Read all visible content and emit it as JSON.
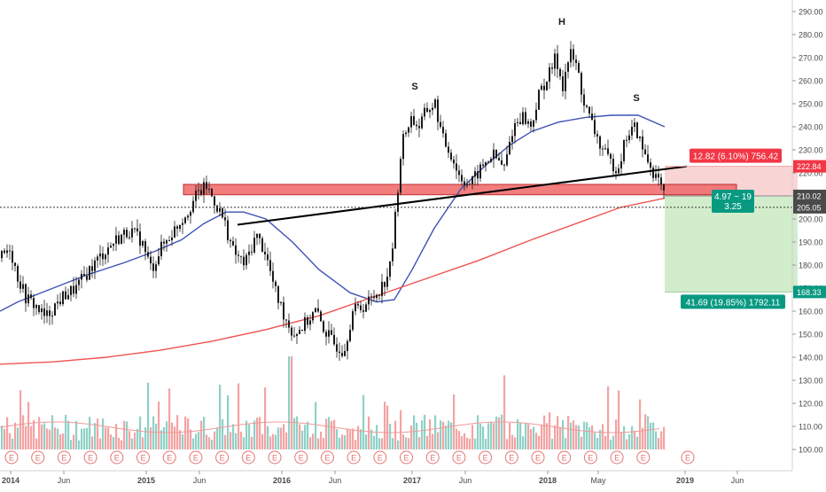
{
  "chart_data": {
    "type": "candlestick",
    "y_axis": {
      "ticks": [
        "290.00",
        "280.00",
        "270.00",
        "260.00",
        "250.00",
        "240.00",
        "230.00",
        "220.00",
        "210.00",
        "200.00",
        "190.00",
        "180.00",
        "170.00",
        "160.00",
        "150.00",
        "140.00",
        "130.00",
        "120.00",
        "110.00",
        "100.00"
      ],
      "range": [
        95,
        292
      ],
      "position": "right",
      "price_labels": [
        {
          "value": 222.84,
          "text": "222.84",
          "color": "#f23645"
        },
        {
          "value": 210.02,
          "text": "210.02",
          "color": "#4a4a4a"
        },
        {
          "value": 205.05,
          "text": "205.05",
          "color": "#4a4a4a"
        },
        {
          "value": 168.33,
          "text": "168.33",
          "color": "#089981"
        }
      ]
    },
    "x_axis": {
      "ticks": [
        {
          "label": "2014",
          "bold": true
        },
        {
          "label": "Jun",
          "bold": false
        },
        {
          "label": "2015",
          "bold": true
        },
        {
          "label": "Jun",
          "bold": false
        },
        {
          "label": "2016",
          "bold": true
        },
        {
          "label": "Jun",
          "bold": false
        },
        {
          "label": "2017",
          "bold": true
        },
        {
          "label": "Jun",
          "bold": false
        },
        {
          "label": "2018",
          "bold": true
        },
        {
          "label": "May",
          "bold": false
        },
        {
          "label": "2019",
          "bold": true
        },
        {
          "label": "Jun",
          "bold": false
        }
      ]
    },
    "grid": false,
    "pattern_labels": [
      "S",
      "H",
      "S"
    ],
    "resistance_zone": {
      "low": 210.5,
      "high": 215.0
    },
    "neckline": {
      "from": 197.5,
      "to": 222.84
    },
    "moving_averages": [
      {
        "color": "#3f51b5"
      },
      {
        "color": "#ef5350"
      }
    ],
    "position_tool": {
      "stop_label": "12.82 (6.10%) 756.42",
      "target_label": "41.69 (19.85%) 1792.11",
      "entry_label_line1": "4.97 ~ 19",
      "entry_label_line2": "3.25",
      "entry": 210.02,
      "stop": 222.84,
      "target": 168.33
    },
    "earnings_marker": "E",
    "earnings_count": 25,
    "colors": {
      "up": "#26a69a",
      "down": "#ef5350",
      "volume_up": "#8fd1c7",
      "volume_down": "#f4a3a3"
    }
  }
}
